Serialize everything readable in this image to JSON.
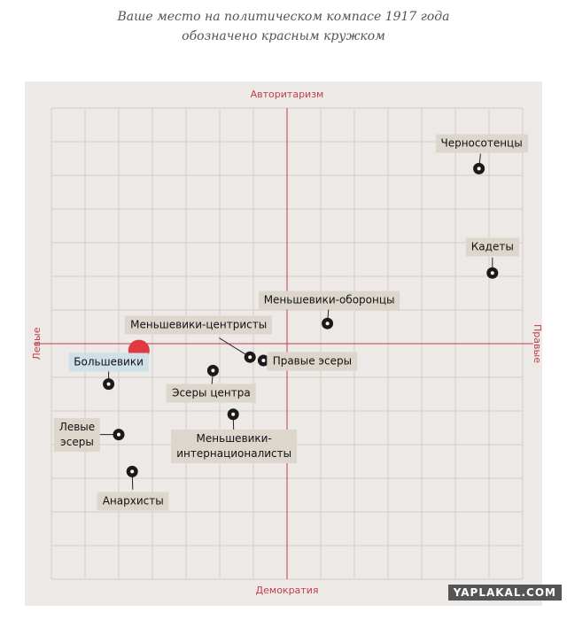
{
  "title": "Ваше место на политическом компасе 1917 года обозначено красным кружком",
  "chart_data": {
    "type": "scatter",
    "axis_top": "Авторитаризм",
    "axis_bottom": "Демократия",
    "axis_left": "Левые",
    "axis_right": "Правые",
    "xlim": [
      -7,
      7
    ],
    "ylim": [
      -7,
      7
    ],
    "xticks": [
      -7,
      -6,
      -5,
      -4,
      -3,
      -2,
      -1,
      0,
      1,
      2,
      3,
      4,
      5,
      6,
      7
    ],
    "yticks": [
      -7,
      -6,
      -5,
      -4,
      -3,
      -2,
      -1,
      0,
      1,
      2,
      3,
      4,
      5,
      6,
      7
    ],
    "grid": true,
    "color": "#1a1a1a",
    "labels": [
      "Черносотенцы",
      "Кадеты",
      "Меньшевики-оборонцы",
      "Меньшевики-центристы",
      "Правые эсеры",
      "Большевики",
      "Эсеры центра",
      "Меньшевики-\nинтернационалисты",
      "Левые\nэсеры",
      "Анархисты"
    ],
    "x": [
      5.7,
      6.1,
      1.2,
      -1.1,
      -0.7,
      -5.3,
      -2.2,
      -1.6,
      -5.0,
      -4.6
    ],
    "y": [
      5.2,
      2.1,
      0.6,
      -0.4,
      -0.5,
      -1.2,
      -0.8,
      -2.1,
      -2.7,
      -3.8
    ],
    "marker": {
      "x": -4.4,
      "y": -0.2,
      "color": "#e0393e"
    }
  },
  "watermark": "YAPLAKAL.COM"
}
